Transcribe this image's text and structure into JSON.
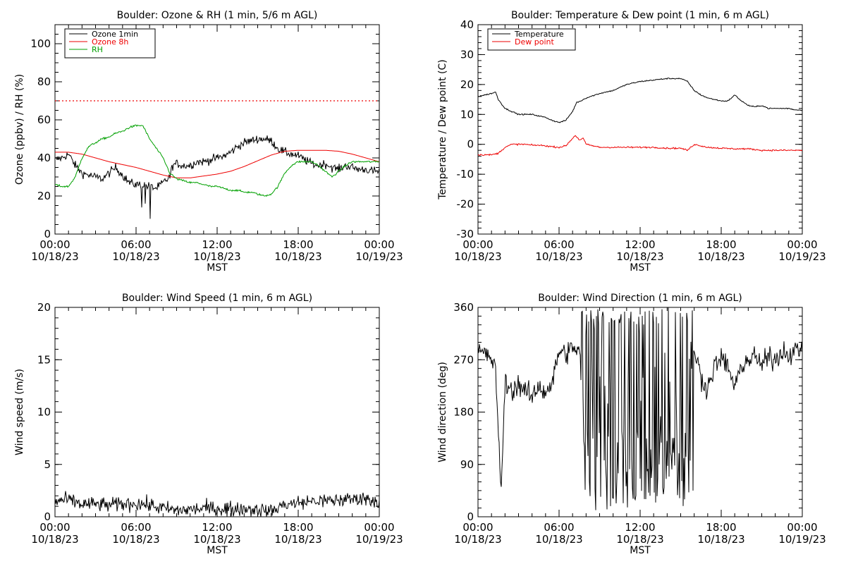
{
  "chart_data": [
    {
      "type": "line",
      "title": "Boulder: Ozone & RH (1 min, 5/6 m AGL)",
      "xlabel": "MST",
      "ylabel": "Ozone (ppbv) / RH (%)",
      "x_ticks": [
        [
          "00:00",
          "10/18/23"
        ],
        [
          "06:00",
          "10/18/23"
        ],
        [
          "12:00",
          "10/18/23"
        ],
        [
          "18:00",
          "10/18/23"
        ],
        [
          "00:00",
          "10/19/23"
        ]
      ],
      "xlim_hours": [
        0,
        24
      ],
      "ylim": [
        0,
        110
      ],
      "y_ticks": [
        0,
        20,
        40,
        60,
        80,
        100
      ],
      "y_minor_step": 5,
      "legend_position": "top-left",
      "reference_line": {
        "value": 70,
        "color": "#ee0000",
        "style": "dotted"
      },
      "series": [
        {
          "name": "Ozone 1min",
          "color": "#000000",
          "noise": 2.2,
          "spikes": [
            [
              6.4,
              14
            ],
            [
              6.7,
              16
            ],
            [
              7.05,
              8
            ]
          ],
          "x": [
            0,
            0.5,
            1.0,
            1.5,
            2.0,
            2.5,
            3.0,
            3.5,
            4.0,
            4.5,
            5.0,
            5.5,
            6.0,
            6.5,
            7.0,
            7.5,
            8.0,
            8.5,
            8.7,
            9.0,
            9.5,
            10.0,
            10.5,
            11.0,
            11.5,
            12.0,
            12.5,
            13.0,
            13.5,
            14.0,
            14.5,
            15.0,
            15.5,
            16.0,
            16.5,
            17.0,
            17.5,
            18.0,
            18.5,
            19.0,
            19.5,
            20.0,
            20.5,
            21.0,
            21.5,
            22.0,
            22.5,
            23.0,
            23.5,
            24.0
          ],
          "y": [
            39,
            40,
            42,
            36,
            32,
            31,
            30,
            29,
            32,
            35,
            31,
            27,
            26,
            26,
            25,
            24,
            27,
            30,
            36,
            37,
            36,
            36,
            38,
            38,
            39,
            40,
            41,
            43,
            46,
            48,
            49,
            50,
            50,
            49,
            45,
            43,
            42,
            41,
            39,
            37,
            36,
            37,
            35,
            34,
            36,
            35,
            34,
            34,
            33,
            33
          ]
        },
        {
          "name": "Ozone 8h",
          "color": "#ee0000",
          "noise": 0,
          "x": [
            0,
            1,
            2,
            3,
            4,
            5,
            6,
            7,
            8,
            9,
            10,
            11,
            12,
            13,
            14,
            15,
            16,
            17,
            18,
            19,
            20,
            21,
            22,
            23,
            24
          ],
          "y": [
            43,
            43,
            42,
            40,
            38,
            36.5,
            35,
            33,
            31,
            29.5,
            29.5,
            30.5,
            31.5,
            33,
            35.5,
            38.5,
            41.5,
            43.5,
            44,
            44,
            44,
            43.5,
            42,
            40,
            38
          ]
        },
        {
          "name": "RH",
          "color": "#00a000",
          "noise": 0.5,
          "x": [
            0,
            0.5,
            1.0,
            1.5,
            2.0,
            2.5,
            3.0,
            3.5,
            4.0,
            4.5,
            5.0,
            5.5,
            6.0,
            6.5,
            7.0,
            7.5,
            8.0,
            8.5,
            9.0,
            9.5,
            10.0,
            10.5,
            11.0,
            11.5,
            12.0,
            12.5,
            13.0,
            13.5,
            14.0,
            14.5,
            15.0,
            15.5,
            16.0,
            16.5,
            17.0,
            17.5,
            18.0,
            18.5,
            19.0,
            19.5,
            20.0,
            20.5,
            21.0,
            21.5,
            22.0,
            22.5,
            23.0,
            23.5,
            24.0
          ],
          "y": [
            26,
            25,
            25,
            30,
            40,
            46,
            48,
            50,
            51,
            53,
            54,
            56,
            57,
            57,
            50,
            45,
            40,
            32,
            29,
            28,
            27,
            27,
            26,
            25,
            25,
            24,
            23,
            23,
            22,
            22,
            21,
            20,
            21,
            25,
            32,
            36,
            38,
            38,
            38,
            36,
            33,
            30,
            33,
            36,
            38,
            38,
            38,
            38,
            38
          ]
        }
      ]
    },
    {
      "type": "line",
      "title": "Boulder: Temperature & Dew point (1 min, 6 m AGL)",
      "xlabel": "MST",
      "ylabel": "Temperature / Dew point (C)",
      "x_ticks": [
        [
          "00:00",
          "10/18/23"
        ],
        [
          "06:00",
          "10/18/23"
        ],
        [
          "12:00",
          "10/18/23"
        ],
        [
          "18:00",
          "10/18/23"
        ],
        [
          "00:00",
          "10/19/23"
        ]
      ],
      "xlim_hours": [
        0,
        24
      ],
      "ylim": [
        -30,
        40
      ],
      "y_ticks": [
        -30,
        -20,
        -10,
        0,
        10,
        20,
        30,
        40
      ],
      "y_minor_step": 2,
      "legend_position": "top-left",
      "series": [
        {
          "name": "Temperature",
          "color": "#000000",
          "noise": 0.2,
          "x": [
            0,
            0.5,
            1.0,
            1.3,
            1.5,
            2.0,
            2.5,
            3.0,
            3.5,
            4.0,
            4.5,
            5.0,
            5.5,
            6.0,
            6.5,
            7.0,
            7.3,
            7.6,
            8.0,
            9.0,
            10.0,
            11.0,
            12.0,
            13.0,
            14.0,
            15.0,
            15.5,
            16.0,
            16.5,
            17.0,
            17.5,
            18.0,
            18.5,
            19.0,
            19.5,
            20.0,
            20.5,
            21.0,
            21.5,
            22.0,
            22.5,
            23.0,
            23.5,
            24.0
          ],
          "y": [
            16,
            16.5,
            17,
            17.5,
            15,
            12,
            11,
            10,
            10,
            10,
            9.5,
            9,
            8,
            7.3,
            8,
            11,
            14,
            14.5,
            15.5,
            17,
            18,
            20,
            21,
            21.5,
            22,
            22,
            21,
            18,
            16.5,
            15.5,
            15,
            14.5,
            14.5,
            16.5,
            14.5,
            13,
            12.5,
            13,
            12,
            12,
            12,
            12,
            11.5,
            11.5
          ]
        },
        {
          "name": "Dew point",
          "color": "#ee0000",
          "noise": 0.25,
          "x": [
            0,
            0.5,
            1.0,
            1.5,
            2.0,
            2.5,
            3.0,
            3.5,
            4.0,
            4.5,
            5.0,
            5.5,
            6.0,
            6.5,
            7.0,
            7.2,
            7.5,
            7.8,
            8.0,
            8.5,
            9.0,
            10.0,
            11.0,
            12.0,
            13.0,
            14.0,
            15.0,
            15.5,
            16.0,
            16.5,
            17.0,
            18.0,
            19.0,
            20.0,
            21.0,
            22.0,
            23.0,
            24.0
          ],
          "y": [
            -3.5,
            -3.5,
            -3.5,
            -3,
            -1,
            0,
            0,
            0,
            -0.3,
            -0.3,
            -0.5,
            -0.8,
            -1,
            -0.5,
            2,
            3,
            1.5,
            2,
            0,
            -0.5,
            -1,
            -1,
            -1,
            -1,
            -1,
            -1.3,
            -1.3,
            -2,
            0,
            -0.5,
            -1,
            -1.3,
            -1.5,
            -1.5,
            -2,
            -2,
            -2,
            -2
          ]
        }
      ]
    },
    {
      "type": "line",
      "title": "Boulder: Wind Speed (1 min, 6 m AGL)",
      "xlabel": "MST",
      "ylabel": "Wind speed (m/s)",
      "x_ticks": [
        [
          "00:00",
          "10/18/23"
        ],
        [
          "06:00",
          "10/18/23"
        ],
        [
          "12:00",
          "10/18/23"
        ],
        [
          "18:00",
          "10/18/23"
        ],
        [
          "00:00",
          "10/19/23"
        ]
      ],
      "xlim_hours": [
        0,
        24
      ],
      "ylim": [
        0,
        20
      ],
      "y_ticks": [
        0,
        5,
        10,
        15,
        20
      ],
      "y_minor_step": 1,
      "series": [
        {
          "name": "",
          "color": "#000000",
          "noise": 0.7,
          "floor": 0,
          "x": [
            0,
            1,
            2,
            3,
            4,
            5,
            6,
            7,
            8,
            9,
            10,
            11,
            12,
            13,
            14,
            15,
            16,
            17,
            18,
            19,
            20,
            21,
            22,
            23,
            24
          ],
          "y": [
            1.5,
            1.6,
            1.2,
            1.2,
            1.1,
            1.2,
            1.3,
            1.1,
            0.8,
            0.6,
            0.7,
            0.8,
            0.8,
            0.7,
            0.8,
            0.7,
            0.5,
            1.2,
            1.3,
            1.5,
            1.5,
            1.6,
            1.7,
            1.8,
            1.4
          ]
        }
      ]
    },
    {
      "type": "line",
      "title": "Boulder: Wind Direction (1 min, 6 m AGL)",
      "xlabel": "MST",
      "ylabel": "Wind direction (deg)",
      "x_ticks": [
        [
          "00:00",
          "10/18/23"
        ],
        [
          "06:00",
          "10/18/23"
        ],
        [
          "12:00",
          "10/18/23"
        ],
        [
          "18:00",
          "10/18/23"
        ],
        [
          "00:00",
          "10/19/23"
        ]
      ],
      "xlim_hours": [
        0,
        24
      ],
      "ylim": [
        0,
        360
      ],
      "y_ticks": [
        0,
        90,
        180,
        270,
        360
      ],
      "y_minor_step": 15,
      "series": [
        {
          "name": "",
          "color": "#000000",
          "noise": 18,
          "variable_window": [
            7.6,
            16.0
          ],
          "x": [
            0,
            0.5,
            1.0,
            1.3,
            1.5,
            1.7,
            2.0,
            2.5,
            3.0,
            3.5,
            4.0,
            4.5,
            5.0,
            5.5,
            6.0,
            6.5,
            7.0,
            7.5,
            16.0,
            16.5,
            17.0,
            17.5,
            18.0,
            18.5,
            19.0,
            19.5,
            20.0,
            20.5,
            21.0,
            21.5,
            22.0,
            22.5,
            23.0,
            23.5,
            24.0
          ],
          "y": [
            285,
            280,
            270,
            260,
            140,
            40,
            230,
            215,
            230,
            215,
            205,
            225,
            215,
            230,
            285,
            280,
            290,
            285,
            290,
            240,
            220,
            260,
            270,
            260,
            220,
            260,
            270,
            275,
            260,
            275,
            270,
            285,
            280,
            285,
            290
          ]
        }
      ]
    }
  ]
}
